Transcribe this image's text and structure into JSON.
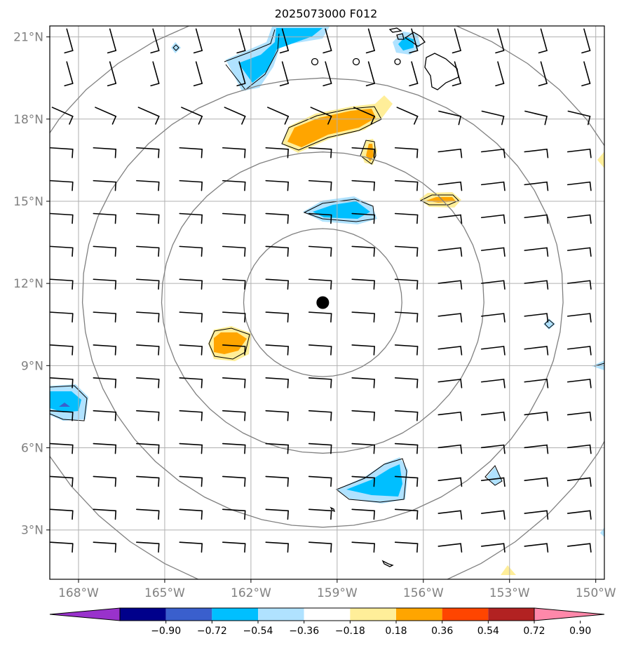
{
  "title": "2025073000 F012",
  "map": {
    "lon_range": [
      -169,
      -149.7
    ],
    "lat_range": [
      1.2,
      21.4
    ],
    "lat_ticks": [
      {
        "value": 21,
        "label": "21°N"
      },
      {
        "value": 18,
        "label": "18°N"
      },
      {
        "value": 15,
        "label": "15°N"
      },
      {
        "value": 12,
        "label": "12°N"
      },
      {
        "value": 9,
        "label": "9°N"
      },
      {
        "value": 6,
        "label": "6°N"
      },
      {
        "value": 3,
        "label": "3°N"
      }
    ],
    "lon_ticks": [
      {
        "value": -168,
        "label": "168°W"
      },
      {
        "value": -165,
        "label": "165°W"
      },
      {
        "value": -162,
        "label": "162°W"
      },
      {
        "value": -159,
        "label": "159°W"
      },
      {
        "value": -156,
        "label": "156°W"
      },
      {
        "value": -153,
        "label": "153°W"
      },
      {
        "value": -150,
        "label": "150°W"
      }
    ],
    "center": {
      "lon": -159.5,
      "lat": 11.3
    },
    "range_rings_deg": [
      2.7,
      5.5,
      8.2,
      11.0
    ]
  },
  "colorbar": {
    "colors": [
      "#9932cc",
      "#00008b",
      "#3a5fcd",
      "#00bfff",
      "#b0e2ff",
      "#ffffff",
      "#ffee99",
      "#ffa500",
      "#ff4500",
      "#b22222",
      "#ff88aa"
    ],
    "labels": [
      "−0.90",
      "−0.72",
      "−0.54",
      "−0.36",
      "−0.18",
      "0.18",
      "0.36",
      "0.54",
      "0.72",
      "0.90"
    ]
  }
}
